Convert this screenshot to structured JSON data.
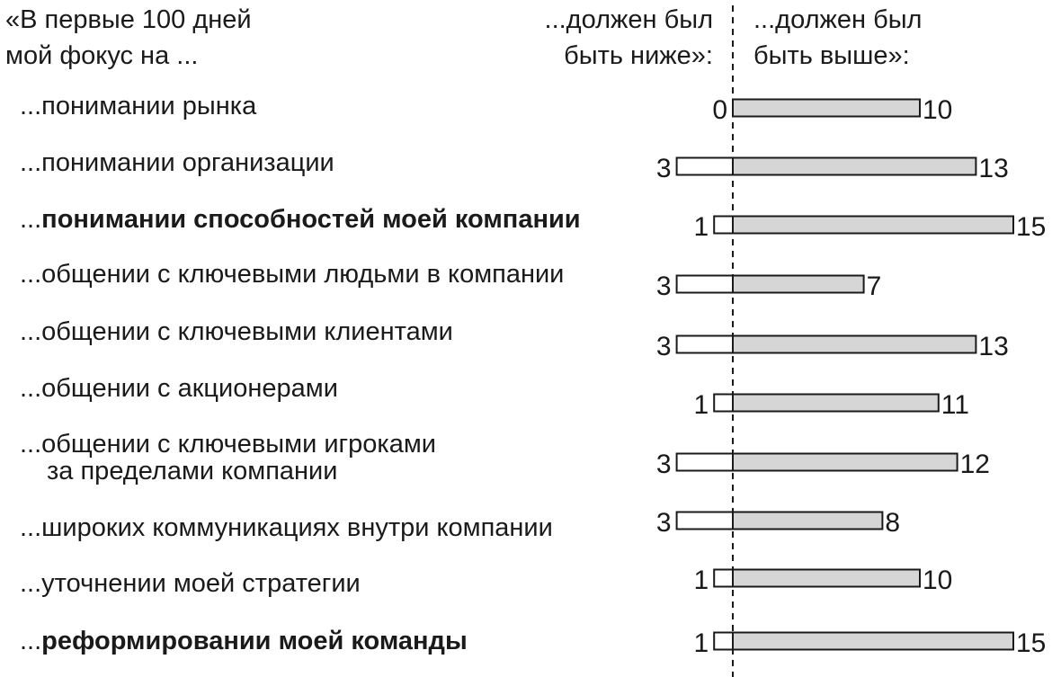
{
  "chart_data": {
    "type": "bar",
    "header": {
      "left_line1": "«В первые 100 дней",
      "left_line2": "мой фокус на ...",
      "mid_line1": "...должен был",
      "mid_line2": "быть ниже»:",
      "right_line1": "...должен был",
      "right_line2": "быть выше»:"
    },
    "label_prefix": "...",
    "categories": [
      {
        "text": "понимании рынка",
        "bold": false
      },
      {
        "text": "понимании организации",
        "bold": false
      },
      {
        "text": "понимании способностей моей компании",
        "bold": true
      },
      {
        "text": "общении с ключевыми людьми в компании",
        "bold": false
      },
      {
        "text": "общении с ключевыми клиентами",
        "bold": false
      },
      {
        "text": "общении с акционерами",
        "bold": false
      },
      {
        "text": "общении с ключевыми игроками",
        "continuation": "за пределами компании",
        "bold": false
      },
      {
        "text": "широких коммуникациях внутри компании",
        "bold": false
      },
      {
        "text": "уточнении моей стратегии",
        "bold": false
      },
      {
        "text": "реформировании моей команды",
        "bold": true
      }
    ],
    "series": [
      {
        "values": [
          0,
          3,
          1,
          3,
          3,
          1,
          3,
          3,
          1,
          1
        ],
        "color": "#ffffff",
        "direction": "left"
      },
      {
        "values": [
          10,
          13,
          15,
          7,
          13,
          11,
          12,
          8,
          10,
          15
        ],
        "color": "#d6d6d6",
        "direction": "right"
      }
    ],
    "grid": false,
    "center_line": "dashed"
  }
}
